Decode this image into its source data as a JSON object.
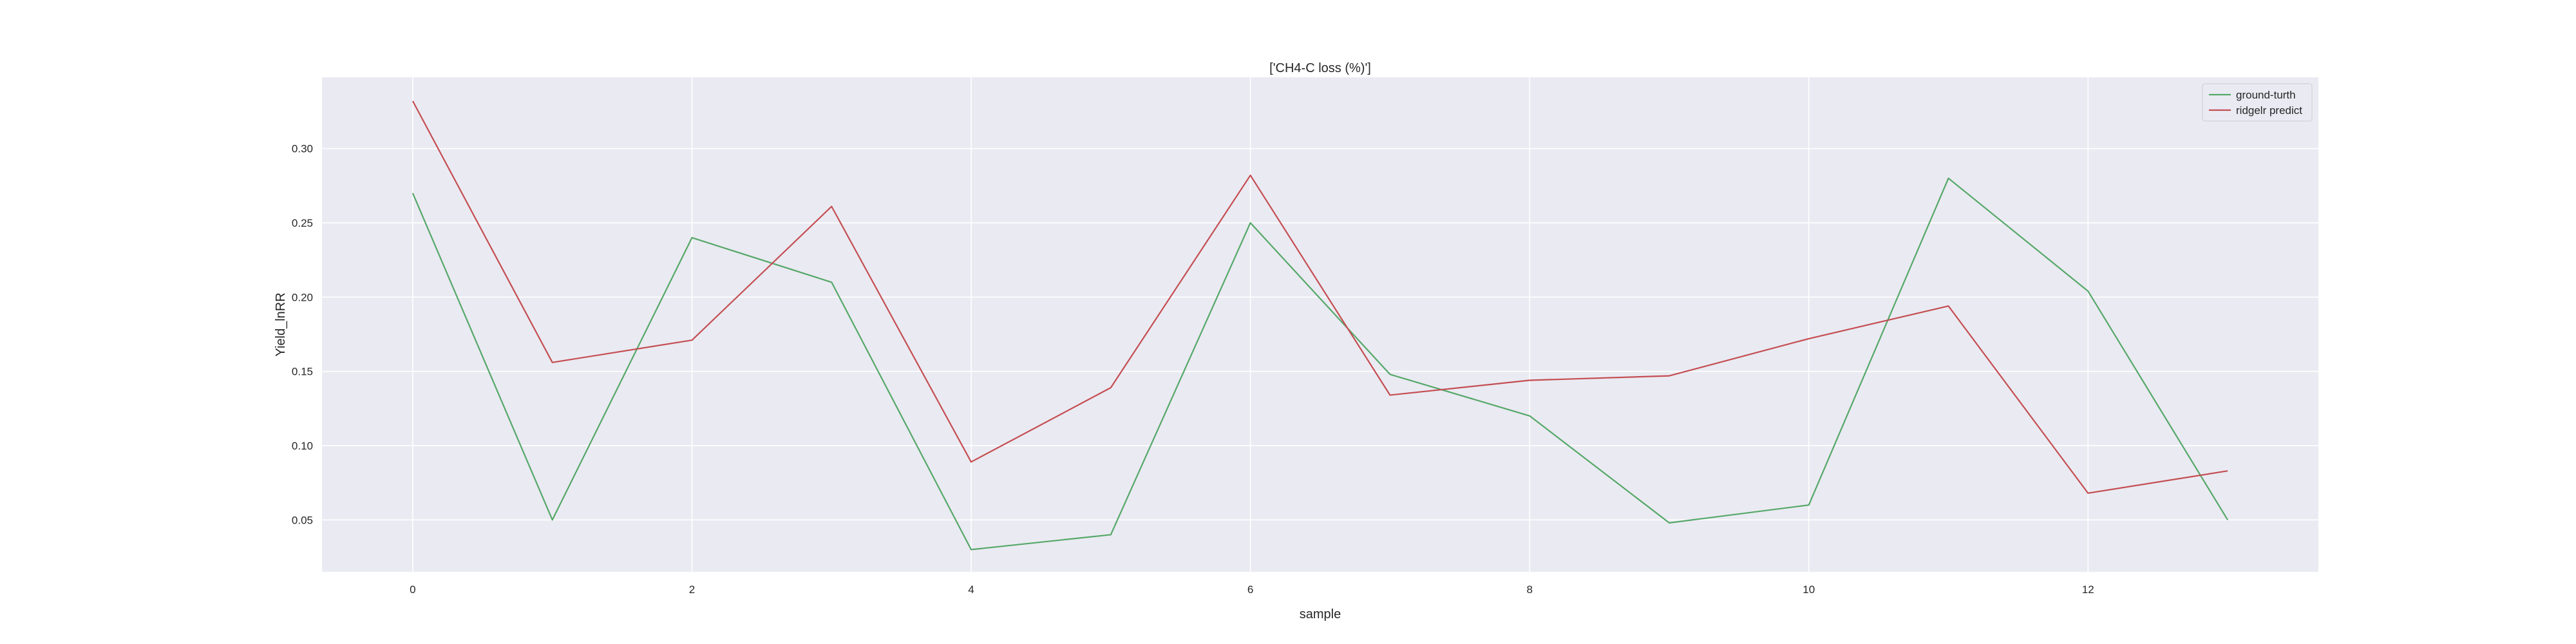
{
  "chart_data": {
    "type": "line",
    "title": "['CH4-C loss (%)']",
    "xlabel": "sample",
    "ylabel": "Yield_lnRR",
    "xlim": [
      -0.65,
      13.65
    ],
    "ylim": [
      0.015,
      0.348
    ],
    "x_ticks": [
      0,
      2,
      4,
      6,
      8,
      10,
      12
    ],
    "y_ticks": [
      0.05,
      0.1,
      0.15,
      0.2,
      0.25,
      0.3
    ],
    "y_tick_labels": [
      "0.05",
      "0.10",
      "0.15",
      "0.20",
      "0.25",
      "0.30"
    ],
    "x": [
      0,
      1,
      2,
      3,
      4,
      5,
      6,
      7,
      8,
      9,
      10,
      11,
      12,
      13
    ],
    "grid": true,
    "legend_position": "top-right",
    "series": [
      {
        "name": "ground-turth",
        "color": "#55a868",
        "values": [
          0.27,
          0.05,
          0.24,
          0.21,
          0.03,
          0.04,
          0.25,
          0.148,
          0.12,
          0.048,
          0.06,
          0.28,
          0.204,
          0.05
        ]
      },
      {
        "name": "ridgelr predict",
        "color": "#c44e52",
        "values": [
          0.332,
          0.156,
          0.171,
          0.261,
          0.089,
          0.139,
          0.282,
          0.134,
          0.144,
          0.147,
          0.172,
          0.194,
          0.068,
          0.083
        ]
      }
    ]
  },
  "colors": {
    "plot_background": "#eaeaf2",
    "grid": "#ffffff",
    "text": "#262626"
  }
}
